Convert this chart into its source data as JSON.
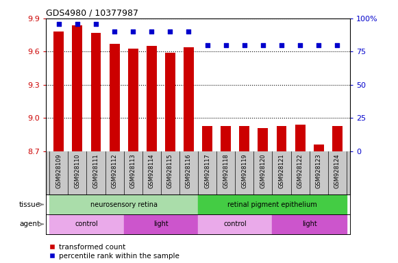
{
  "title": "GDS4980 / 10377987",
  "samples": [
    "GSM928109",
    "GSM928110",
    "GSM928111",
    "GSM928112",
    "GSM928113",
    "GSM928114",
    "GSM928115",
    "GSM928116",
    "GSM928117",
    "GSM928118",
    "GSM928119",
    "GSM928120",
    "GSM928121",
    "GSM928122",
    "GSM928123",
    "GSM928124"
  ],
  "bar_values": [
    9.78,
    9.84,
    9.77,
    9.67,
    9.63,
    9.65,
    9.59,
    9.64,
    8.93,
    8.93,
    8.93,
    8.91,
    8.93,
    8.94,
    8.76,
    8.93
  ],
  "percentile_values": [
    96,
    96,
    96,
    90,
    90,
    90,
    90,
    90,
    80,
    80,
    80,
    80,
    80,
    80,
    80,
    80
  ],
  "bar_bottom": 8.7,
  "ylim_left": [
    8.7,
    9.9
  ],
  "ylim_right": [
    0,
    100
  ],
  "yticks_left": [
    8.7,
    9.0,
    9.3,
    9.6,
    9.9
  ],
  "yticks_right": [
    0,
    25,
    50,
    75,
    100
  ],
  "bar_color": "#CC0000",
  "dot_color": "#0000CC",
  "xtick_bg_color": "#C8C8C8",
  "tissue_row": [
    {
      "label": "neurosensory retina",
      "start": 0,
      "end": 7,
      "color": "#AADDAA"
    },
    {
      "label": "retinal pigment epithelium",
      "start": 8,
      "end": 15,
      "color": "#44CC44"
    }
  ],
  "agent_row": [
    {
      "label": "control",
      "start": 0,
      "end": 3,
      "color": "#EAAAEA"
    },
    {
      "label": "light",
      "start": 4,
      "end": 7,
      "color": "#CC55CC"
    },
    {
      "label": "control",
      "start": 8,
      "end": 11,
      "color": "#EAAAEA"
    },
    {
      "label": "light",
      "start": 12,
      "end": 15,
      "color": "#CC55CC"
    }
  ],
  "legend_items": [
    {
      "label": "transformed count",
      "color": "#CC0000"
    },
    {
      "label": "percentile rank within the sample",
      "color": "#0000CC"
    }
  ],
  "tick_label_color_left": "#CC0000",
  "tick_label_color_right": "#0000CC",
  "bar_width": 0.55
}
